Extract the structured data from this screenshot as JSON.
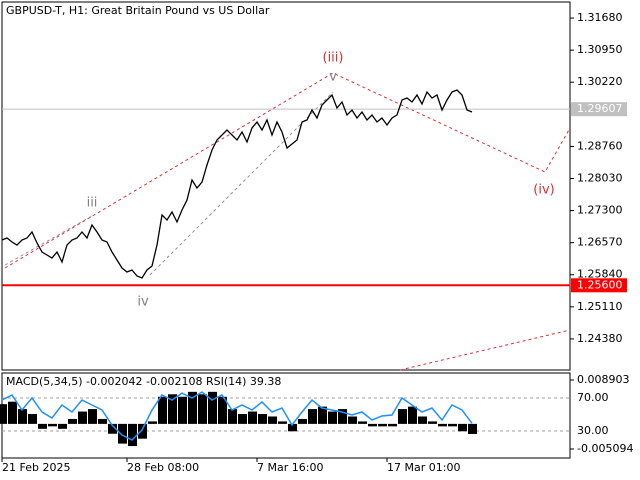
{
  "chart_data": [
    {
      "type": "line",
      "title": "GBPUSD-T, H1:  Great Britain Pound vs US Dollar",
      "color": "#000000",
      "xlim": [
        0,
        113.6
      ],
      "ylim": [
        1.23673,
        1.32045
      ],
      "series": [
        {
          "color": "#000000",
          "values": [
            1.26631,
            1.26676,
            1.26585,
            1.26517,
            1.26631,
            1.26676,
            1.26813,
            1.26562,
            1.26358,
            1.26289,
            1.26221,
            1.26358,
            1.2613,
            1.26517,
            1.26631,
            1.26676,
            1.26813,
            1.26676,
            1.26972,
            1.26813,
            1.26631,
            1.26585,
            1.26358,
            1.26175,
            1.25993,
            1.25902,
            1.25948,
            1.25811,
            1.25766,
            1.25948,
            1.26039,
            1.26517,
            1.27199,
            1.27085,
            1.27267,
            1.2704,
            1.27313,
            1.2754,
            1.27995,
            1.27813,
            1.2795,
            1.28337,
            1.28678,
            1.28905,
            1.29019,
            1.29133,
            1.29019,
            1.28905,
            1.29087,
            1.2886,
            1.29178,
            1.29315,
            1.29133,
            1.2936,
            1.29019,
            1.29315,
            1.29087,
            1.28723,
            1.28814,
            1.28905,
            1.29315,
            1.2936,
            1.29588,
            1.29406,
            1.29702,
            1.29815,
            1.29929,
            1.29633,
            1.2977,
            1.29474,
            1.29588,
            1.29406,
            1.29542,
            1.2936,
            1.29474,
            1.29315,
            1.29406,
            1.29247,
            1.29406,
            1.29474,
            1.29815,
            1.29861,
            1.2977,
            1.29929,
            1.29724,
            1.29997,
            1.29861,
            1.29929,
            1.29588,
            1.29815,
            1.29997,
            1.30043,
            1.29929,
            1.29588,
            1.29542
          ]
        }
      ],
      "yticks": [
        {
          "value": 1.3168,
          "label": "1.31680"
        },
        {
          "value": 1.3095,
          "label": "1.30950"
        },
        {
          "value": 1.3022,
          "label": "1.30220"
        },
        {
          "value": 1.2876,
          "label": "1.28760"
        },
        {
          "value": 1.2803,
          "label": "1.28030"
        },
        {
          "value": 1.273,
          "label": "1.27300"
        },
        {
          "value": 1.2657,
          "label": "1.26570"
        },
        {
          "value": 1.2584,
          "label": "1.25840"
        },
        {
          "value": 1.2511,
          "label": "1.25110"
        },
        {
          "value": 1.2438,
          "label": "1.24380"
        }
      ],
      "xticks": [
        {
          "value": 0,
          "label": "21 Feb 2025"
        },
        {
          "value": 25,
          "label": "28 Feb 08:00"
        },
        {
          "value": 51,
          "label": "7 Mar 16:00"
        },
        {
          "value": 77,
          "label": "17 Mar 01:00"
        }
      ],
      "price_lines": [
        {
          "value": 1.29607,
          "label": "1.29607",
          "color": "#c0c0c0"
        },
        {
          "value": 1.256,
          "label": "1.25600",
          "color": "#ff0000"
        }
      ],
      "annotations": [
        {
          "text": "(iii)",
          "color": "#e03030"
        },
        {
          "text": "(iv)",
          "color": "#e03030"
        },
        {
          "text": "iii",
          "color": "#808080"
        },
        {
          "text": "iv",
          "color": "#808080"
        },
        {
          "text": "v",
          "color": "#808080"
        }
      ]
    },
    {
      "type": "macd",
      "title": "MACD(5,34,5) -0.002042 -0.002108 RSI(14) 39.38",
      "xlim": [
        0,
        56.8
      ],
      "ylim": [
        -0.00692,
        0.01032
      ],
      "yticks": [
        0.008903,
        -0.005094
      ],
      "y2lim": [
        -2.7,
        100.3
      ],
      "y2ticks": [
        {
          "value": 70,
          "label": "70.00"
        },
        {
          "value": 30,
          "label": "30.00"
        }
      ],
      "series": [
        {
          "type": "bar",
          "color": "#000000",
          "values": [
            0.004,
            0.0045,
            0.003,
            0.002,
            -0.001,
            -0.0005,
            -0.001,
            0.001,
            0.0025,
            0.003,
            0.001,
            -0.002,
            -0.004,
            -0.0045,
            -0.003,
            0.0005,
            0.0055,
            0.006,
            0.0055,
            0.0065,
            0.006,
            0.0065,
            0.0055,
            0.003,
            0.002,
            0.0025,
            0.002,
            0.0015,
            0.0005,
            -0.0015,
            0.001,
            0.003,
            0.0035,
            0.0025,
            0.003,
            0.0015,
            0.0005,
            -0.0005,
            -0.0005,
            -0.0005,
            0.003,
            0.0035,
            0.0015,
            0.0005,
            -0.0005,
            -0.0005,
            -0.0015,
            -0.002042
          ]
        },
        {
          "type": "line",
          "axis": "y2",
          "color": "#1e90ff",
          "values": [
            67.6,
            73.6,
            55.5,
            70,
            53,
            45.8,
            61.5,
            53,
            67.6,
            61.5,
            55.5,
            37.3,
            25.2,
            19.1,
            31.2,
            55.5,
            73.6,
            67.6,
            76,
            70,
            77.3,
            67.6,
            73.6,
            55.5,
            61.5,
            55.5,
            65.2,
            53,
            57.9,
            37.3,
            53,
            67.6,
            57.9,
            55.5,
            53,
            49.4,
            53,
            43.3,
            48.2,
            49.4,
            70,
            61.5,
            53,
            57.9,
            43.3,
            61.5,
            55.5,
            39.38
          ]
        }
      ]
    }
  ]
}
